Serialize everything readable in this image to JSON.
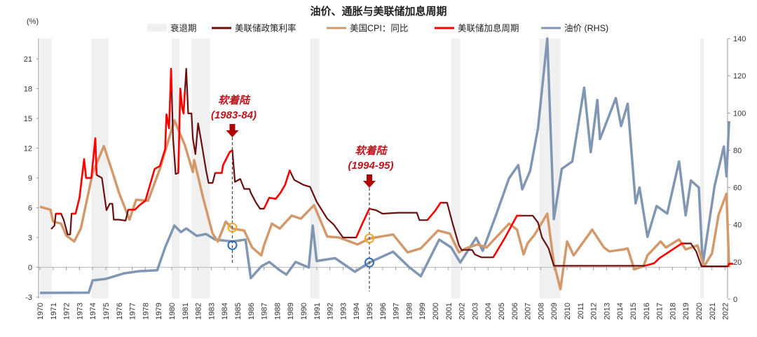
{
  "chart_data": {
    "type": "line",
    "title": "油价、通胀与美联储加息周期",
    "ylabel": "(%)",
    "ylim": [
      -3,
      23
    ],
    "y_ticks": [
      -3,
      0,
      3,
      6,
      9,
      12,
      15,
      18,
      21
    ],
    "y2lim": [
      0,
      140
    ],
    "y2_ticks": [
      0,
      20,
      40,
      60,
      80,
      100,
      120,
      140
    ],
    "xlim": [
      1970,
      2022.6
    ],
    "x_ticks": [
      1970,
      1971,
      1972,
      1973,
      1974,
      1975,
      1976,
      1977,
      1978,
      1979,
      1980,
      1981,
      1982,
      1983,
      1984,
      1985,
      1986,
      1987,
      1988,
      1989,
      1990,
      1991,
      1992,
      1993,
      1994,
      1995,
      1996,
      1997,
      1998,
      1999,
      2000,
      2001,
      2002,
      2003,
      2004,
      2005,
      2006,
      2007,
      2008,
      2009,
      2010,
      2011,
      2012,
      2013,
      2014,
      2015,
      2016,
      2017,
      2018,
      2019,
      2020,
      2021,
      2022
    ],
    "legend_position": "top",
    "grid": false,
    "legend": [
      {
        "name": "衰退期",
        "kind": "band",
        "color": "#f0f0f0"
      },
      {
        "name": "美联储政策利率",
        "kind": "line",
        "color": "#6b0f0f"
      },
      {
        "name": "美国CPI：同比",
        "kind": "line",
        "color": "#d4996a"
      },
      {
        "name": "美联储加息周期",
        "kind": "line",
        "color": "#ff0000"
      },
      {
        "name": "油价 (RHS)",
        "kind": "line",
        "color": "#8096b2"
      }
    ],
    "recessions": [
      [
        1970.0,
        1970.9
      ],
      [
        1973.9,
        1975.2
      ],
      [
        1980.0,
        1980.6
      ],
      [
        1981.5,
        1982.9
      ],
      [
        1990.5,
        1991.2
      ],
      [
        2001.2,
        2001.9
      ],
      [
        2007.9,
        2009.5
      ],
      [
        2020.1,
        2020.4
      ]
    ],
    "hike_cycles": [
      [
        1971.2,
        1971.6
      ],
      [
        1972.4,
        1974.3
      ],
      [
        1976.7,
        1980.0
      ],
      [
        1980.5,
        1981.0
      ],
      [
        1983.3,
        1984.6
      ],
      [
        1987.0,
        1989.0
      ],
      [
        1994.0,
        1995.1
      ],
      [
        1999.4,
        2000.5
      ],
      [
        2004.4,
        2006.5
      ],
      [
        2015.9,
        2018.9
      ],
      [
        2022.2,
        2022.6
      ]
    ],
    "series": [
      {
        "name": "美联储政策利率",
        "axis": "left",
        "color": "#6b0f0f",
        "points": [
          [
            1970.85,
            3.85
          ],
          [
            1971.1,
            4.2
          ],
          [
            1971.2,
            5.4
          ],
          [
            1971.6,
            5.4
          ],
          [
            1971.8,
            4.8
          ],
          [
            1972.1,
            3.3
          ],
          [
            1972.3,
            3.3
          ],
          [
            1972.4,
            5.4
          ],
          [
            1972.7,
            5.4
          ],
          [
            1973.0,
            7.0
          ],
          [
            1973.35,
            10.9
          ],
          [
            1973.5,
            9.0
          ],
          [
            1973.9,
            9.0
          ],
          [
            1974.2,
            13.0
          ],
          [
            1974.3,
            9.3
          ],
          [
            1974.7,
            9.0
          ],
          [
            1975.05,
            5.75
          ],
          [
            1975.3,
            6.4
          ],
          [
            1975.5,
            6.4
          ],
          [
            1975.6,
            4.8
          ],
          [
            1976.0,
            4.8
          ],
          [
            1976.5,
            4.7
          ],
          [
            1976.7,
            5.8
          ],
          [
            1977.2,
            5.8
          ],
          [
            1977.6,
            6.3
          ],
          [
            1978.0,
            6.7
          ],
          [
            1978.7,
            9.9
          ],
          [
            1979.1,
            10.2
          ],
          [
            1979.5,
            11.9
          ],
          [
            1979.6,
            15.4
          ],
          [
            1979.8,
            14.0
          ],
          [
            1979.95,
            20.0
          ],
          [
            1980.1,
            13.0
          ],
          [
            1980.3,
            9.4
          ],
          [
            1980.5,
            9.5
          ],
          [
            1980.65,
            18.0
          ],
          [
            1980.8,
            16.0
          ],
          [
            1980.9,
            15.5
          ],
          [
            1981.1,
            20.0
          ],
          [
            1981.25,
            15.5
          ],
          [
            1981.5,
            15.5
          ],
          [
            1981.6,
            13.0
          ],
          [
            1981.8,
            11.4
          ],
          [
            1982.0,
            14.5
          ],
          [
            1982.2,
            13.0
          ],
          [
            1982.6,
            9.8
          ],
          [
            1982.8,
            8.5
          ],
          [
            1983.1,
            8.5
          ],
          [
            1983.3,
            9.5
          ],
          [
            1983.8,
            9.5
          ],
          [
            1983.9,
            10.3
          ],
          [
            1984.4,
            11.6
          ],
          [
            1984.6,
            11.8
          ],
          [
            1984.8,
            8.6
          ],
          [
            1985.2,
            8.9
          ],
          [
            1985.5,
            7.9
          ],
          [
            1985.9,
            7.9
          ],
          [
            1986.0,
            7.5
          ],
          [
            1986.4,
            6.5
          ],
          [
            1986.7,
            5.9
          ],
          [
            1987.0,
            5.9
          ],
          [
            1987.4,
            7.0
          ],
          [
            1987.9,
            6.9
          ],
          [
            1988.25,
            7.5
          ],
          [
            1988.6,
            8.3
          ],
          [
            1988.95,
            9.75
          ],
          [
            1989.3,
            8.8
          ],
          [
            1990.0,
            8.3
          ],
          [
            1990.5,
            8.1
          ],
          [
            1991.0,
            6.6
          ],
          [
            1991.8,
            4.9
          ],
          [
            1992.3,
            4.3
          ],
          [
            1993.0,
            3.0
          ],
          [
            1993.8,
            3.0
          ],
          [
            1994.0,
            3.0
          ],
          [
            1994.5,
            4.5
          ],
          [
            1995.0,
            5.9
          ],
          [
            1995.5,
            5.75
          ],
          [
            1996.0,
            5.4
          ],
          [
            1997.2,
            5.5
          ],
          [
            1998.6,
            5.5
          ],
          [
            1998.8,
            4.75
          ],
          [
            1999.4,
            4.75
          ],
          [
            2000.0,
            5.7
          ],
          [
            2000.4,
            6.5
          ],
          [
            2000.9,
            6.5
          ],
          [
            2001.3,
            4.5
          ],
          [
            2001.8,
            2.2
          ],
          [
            2002.0,
            1.75
          ],
          [
            2002.8,
            1.75
          ],
          [
            2003.0,
            1.3
          ],
          [
            2003.5,
            1.0
          ],
          [
            2004.4,
            1.0
          ],
          [
            2005.3,
            3.0
          ],
          [
            2006.2,
            5.2
          ],
          [
            2007.4,
            5.2
          ],
          [
            2007.8,
            4.5
          ],
          [
            2008.1,
            3.0
          ],
          [
            2008.6,
            1.9
          ],
          [
            2009.0,
            0.15
          ],
          [
            2015.9,
            0.15
          ],
          [
            2016.6,
            0.4
          ],
          [
            2017.0,
            0.9
          ],
          [
            2018.7,
            2.4
          ],
          [
            2019.4,
            2.4
          ],
          [
            2019.8,
            1.6
          ],
          [
            2020.2,
            0.1
          ],
          [
            2022.2,
            0.1
          ],
          [
            2022.3,
            0.35
          ],
          [
            2022.6,
            0.35
          ]
        ]
      },
      {
        "name": "美国CPI：同比",
        "axis": "left",
        "color": "#d4996a",
        "points": [
          [
            1970.0,
            6.1
          ],
          [
            1970.8,
            5.8
          ],
          [
            1971.0,
            4.6
          ],
          [
            1971.6,
            4.4
          ],
          [
            1972.0,
            3.2
          ],
          [
            1972.6,
            2.6
          ],
          [
            1973.1,
            3.9
          ],
          [
            1974.0,
            9.5
          ],
          [
            1974.85,
            12.2
          ],
          [
            1975.5,
            9.6
          ],
          [
            1976.0,
            7.5
          ],
          [
            1976.8,
            4.8
          ],
          [
            1977.3,
            6.8
          ],
          [
            1978.2,
            6.7
          ],
          [
            1979.1,
            9.9
          ],
          [
            1980.2,
            14.8
          ],
          [
            1981.0,
            12.3
          ],
          [
            1981.6,
            9.6
          ],
          [
            1981.7,
            10.8
          ],
          [
            1982.4,
            6.9
          ],
          [
            1983.1,
            3.4
          ],
          [
            1983.5,
            2.6
          ],
          [
            1984.1,
            4.6
          ],
          [
            1984.6,
            3.9
          ],
          [
            1985.5,
            3.7
          ],
          [
            1986.1,
            2.0
          ],
          [
            1986.8,
            1.2
          ],
          [
            1987.0,
            2.2
          ],
          [
            1987.6,
            4.4
          ],
          [
            1988.2,
            3.9
          ],
          [
            1989.1,
            5.2
          ],
          [
            1989.8,
            4.9
          ],
          [
            1990.8,
            6.25
          ],
          [
            1991.8,
            3.1
          ],
          [
            1992.7,
            3.0
          ],
          [
            1994.1,
            2.3
          ],
          [
            1995.0,
            2.9
          ],
          [
            1996.8,
            3.3
          ],
          [
            1997.9,
            1.5
          ],
          [
            1998.9,
            1.9
          ],
          [
            2000.2,
            3.7
          ],
          [
            2001.1,
            3.4
          ],
          [
            2001.8,
            1.5
          ],
          [
            2002.3,
            1.9
          ],
          [
            2003.2,
            2.3
          ],
          [
            2003.9,
            2.0
          ],
          [
            2005.6,
            4.4
          ],
          [
            2006.2,
            3.8
          ],
          [
            2006.7,
            1.3
          ],
          [
            2007.0,
            2.4
          ],
          [
            2007.55,
            3.3
          ],
          [
            2008.5,
            5.4
          ],
          [
            2009.0,
            0.4
          ],
          [
            2009.5,
            -2.2
          ],
          [
            2010.0,
            2.6
          ],
          [
            2010.5,
            1.2
          ],
          [
            2011.7,
            3.4
          ],
          [
            2011.9,
            3.8
          ],
          [
            2012.8,
            2.0
          ],
          [
            2013.2,
            1.6
          ],
          [
            2014.3,
            1.8
          ],
          [
            2014.6,
            1.9
          ],
          [
            2015.1,
            -0.2
          ],
          [
            2015.8,
            0.1
          ],
          [
            2016.1,
            1.2
          ],
          [
            2017.1,
            2.6
          ],
          [
            2017.5,
            2.0
          ],
          [
            2018.5,
            2.8
          ],
          [
            2019.0,
            1.8
          ],
          [
            2019.9,
            2.2
          ],
          [
            2020.4,
            0.1
          ],
          [
            2021.0,
            1.4
          ],
          [
            2021.5,
            5.3
          ],
          [
            2022.1,
            7.4
          ],
          [
            2022.3,
            0.0
          ]
        ]
      },
      {
        "name": "油价 (RHS)",
        "axis": "right",
        "color": "#8096b2",
        "points": [
          [
            1970.0,
            3.4
          ],
          [
            1973.7,
            3.5
          ],
          [
            1974.0,
            10.1
          ],
          [
            1975.0,
            10.9
          ],
          [
            1976.4,
            13.9
          ],
          [
            1977.5,
            15.0
          ],
          [
            1978.9,
            15.5
          ],
          [
            1979.5,
            27.8
          ],
          [
            1980.2,
            39.5
          ],
          [
            1980.7,
            36.0
          ],
          [
            1981.1,
            38.0
          ],
          [
            1981.9,
            34.0
          ],
          [
            1982.6,
            35.0
          ],
          [
            1983.3,
            32.0
          ],
          [
            1984.6,
            31.0
          ],
          [
            1985.6,
            32.0
          ],
          [
            1986.0,
            11.3
          ],
          [
            1986.8,
            17.6
          ],
          [
            1987.4,
            20.0
          ],
          [
            1988.2,
            15.5
          ],
          [
            1988.7,
            13.2
          ],
          [
            1989.4,
            20.0
          ],
          [
            1990.4,
            17.0
          ],
          [
            1990.7,
            39.5
          ],
          [
            1991.0,
            20.5
          ],
          [
            1992.4,
            22.0
          ],
          [
            1993.9,
            14.7
          ],
          [
            1995.0,
            19.7
          ],
          [
            1996.8,
            25.5
          ],
          [
            1998.0,
            17.3
          ],
          [
            1998.9,
            12.3
          ],
          [
            2000.3,
            32.0
          ],
          [
            2001.2,
            27.8
          ],
          [
            2001.9,
            19.7
          ],
          [
            2003.1,
            33.0
          ],
          [
            2003.6,
            26.0
          ],
          [
            2004.6,
            45.0
          ],
          [
            2005.6,
            65.0
          ],
          [
            2006.3,
            72.0
          ],
          [
            2006.6,
            59.0
          ],
          [
            2007.2,
            69.0
          ],
          [
            2007.8,
            92.0
          ],
          [
            2008.5,
            140.0
          ],
          [
            2009.0,
            43.0
          ],
          [
            2009.6,
            70.0
          ],
          [
            2010.4,
            74.0
          ],
          [
            2011.3,
            113.6
          ],
          [
            2011.8,
            79.0
          ],
          [
            2012.3,
            107.0
          ],
          [
            2012.5,
            86.0
          ],
          [
            2013.7,
            108.0
          ],
          [
            2014.1,
            93.0
          ],
          [
            2014.6,
            105.0
          ],
          [
            2015.2,
            51.5
          ],
          [
            2015.5,
            60.0
          ],
          [
            2016.1,
            33.5
          ],
          [
            2016.8,
            50.0
          ],
          [
            2017.6,
            46.0
          ],
          [
            2018.5,
            74.0
          ],
          [
            2019.0,
            45.0
          ],
          [
            2019.4,
            63.7
          ],
          [
            2020.0,
            60.0
          ],
          [
            2020.3,
            18.5
          ],
          [
            2020.8,
            42.0
          ],
          [
            2021.2,
            61.0
          ],
          [
            2021.6,
            73.0
          ],
          [
            2021.9,
            82.0
          ],
          [
            2022.1,
            66.0
          ],
          [
            2022.3,
            95.6
          ]
        ]
      }
    ],
    "annotations": [
      {
        "label": "软着陆",
        "period": "(1983-84)",
        "year": 1984.6,
        "cpi_marker": 4.0,
        "oil_marker": 29.0
      },
      {
        "label": "软着陆",
        "period": "(1994-95)",
        "year": 1995.0,
        "cpi_marker": 2.9,
        "oil_marker": 19.7
      }
    ],
    "marker_colors": {
      "cpi": "#f5a623",
      "oil": "#2f6db5",
      "arrow": "#b00000"
    }
  }
}
